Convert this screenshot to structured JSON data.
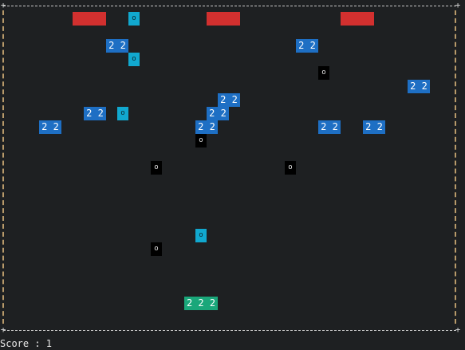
{
  "border": {
    "corner_glyph": "+",
    "edge_color": "#c8c8c8",
    "side_color": "#b89a6a"
  },
  "colors": {
    "background": "#1e2022",
    "enemy_paddle": "#d2302f",
    "block": "#1e6fc4",
    "ball_highlight": "#11a8cf",
    "ball": "#000000",
    "player_paddle": "#1aa77a"
  },
  "enemy_paddles": [
    "",
    "",
    ""
  ],
  "blocks": [
    "2 2",
    "2 2",
    "2 2",
    "2 2",
    "2 2",
    "2 2",
    "2 2",
    "2 2",
    "2 2",
    "2 2"
  ],
  "highlight_balls": [
    "o",
    "o",
    "o",
    "o"
  ],
  "balls": [
    "o",
    "o",
    "o",
    "o",
    "o"
  ],
  "player": {
    "label": "2 2 2"
  },
  "status": {
    "text": "Score : 1"
  }
}
